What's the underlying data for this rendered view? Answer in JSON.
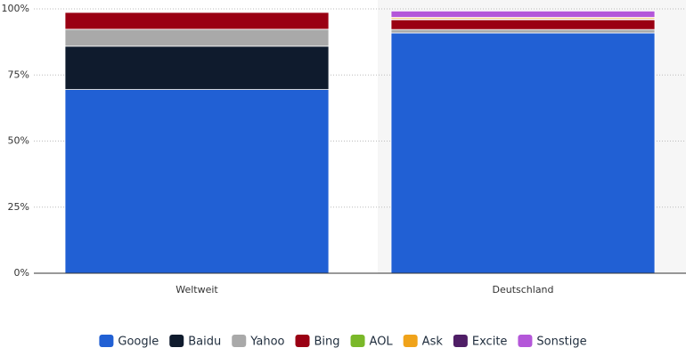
{
  "chart_data": {
    "type": "bar",
    "stacked": true,
    "categories": [
      "Weltweit",
      "Deutschland"
    ],
    "series": [
      {
        "name": "Google",
        "color": "#2160d4",
        "values": [
          69.5,
          90.9
        ]
      },
      {
        "name": "Baidu",
        "color": "#0f1b2d",
        "values": [
          16.4,
          0
        ]
      },
      {
        "name": "Yahoo",
        "color": "#a9a9a9",
        "values": [
          6.4,
          1.3
        ]
      },
      {
        "name": "Bing",
        "color": "#9a0013",
        "values": [
          6.4,
          3.7
        ]
      },
      {
        "name": "AOL",
        "color": "#7ab829",
        "values": [
          0.1,
          0.3
        ]
      },
      {
        "name": "Ask",
        "color": "#f0a31a",
        "values": [
          0.1,
          0.5
        ]
      },
      {
        "name": "Excite",
        "color": "#4f1e66",
        "values": [
          0,
          0.1
        ]
      },
      {
        "name": "Sonstige",
        "color": "#b457d9",
        "values": [
          0.2,
          2.4
        ]
      }
    ],
    "ylim": [
      0,
      100
    ],
    "yticks": [
      {
        "value": 0,
        "label": "0%"
      },
      {
        "value": 25,
        "label": "25%"
      },
      {
        "value": 50,
        "label": "50%"
      },
      {
        "value": 75,
        "label": "75%"
      },
      {
        "value": 100,
        "label": "100%"
      }
    ],
    "grid": true,
    "legend": "bottom"
  }
}
